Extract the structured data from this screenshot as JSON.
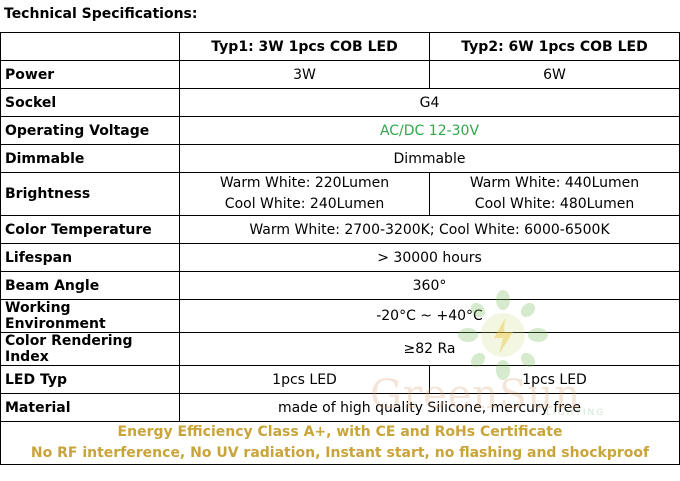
{
  "title": "Technical Specifications:",
  "header": {
    "col1": "",
    "col2": "Typ1: 3W 1pcs COB LED",
    "col3": "Typ2: 6W 1pcs COB LED"
  },
  "rows": [
    {
      "label": "Power",
      "v1": "3W",
      "v2": "6W"
    },
    {
      "label": "Sockel",
      "value": "G4"
    },
    {
      "label": "Operating Voltage",
      "value": "AC/DC 12-30V"
    },
    {
      "label": "Dimmable",
      "value": "Dimmable"
    },
    {
      "label": "Brightness",
      "v1": [
        "Warm White: 220Lumen",
        "Cool White: 240Lumen"
      ],
      "v2": [
        "Warm White: 440Lumen",
        "Cool White: 480Lumen"
      ]
    },
    {
      "label": "Color Temperature",
      "value": "Warm White: 2700-3200K; Cool White: 6000-6500K"
    },
    {
      "label": "Lifespan",
      "value": "> 30000 hours"
    },
    {
      "label": "Beam Angle",
      "value": "360°"
    },
    {
      "label": "Working Environment",
      "value": "-20°C ~ +40°C"
    },
    {
      "label": "Color Rendering Index",
      "value": "≥82 Ra"
    },
    {
      "label": "LED Typ",
      "v1": "1pcs LED",
      "v2": "1pcs LED"
    },
    {
      "label": "Material",
      "value": "made of high quality Silicone, mercury free"
    }
  ],
  "footer": [
    "Energy Efficiency Class A+, with CE and RoHs Certificate",
    "No RF interference, No UV radiation, Instant start, no flashing and shockproof"
  ],
  "watermark": {
    "text": "GreenSun",
    "sub": "LIGHTING",
    "icon": "sun-bulb-logo-icon"
  },
  "colors": {
    "voltage": "#2ea84b",
    "footer": "#c9a43a"
  }
}
